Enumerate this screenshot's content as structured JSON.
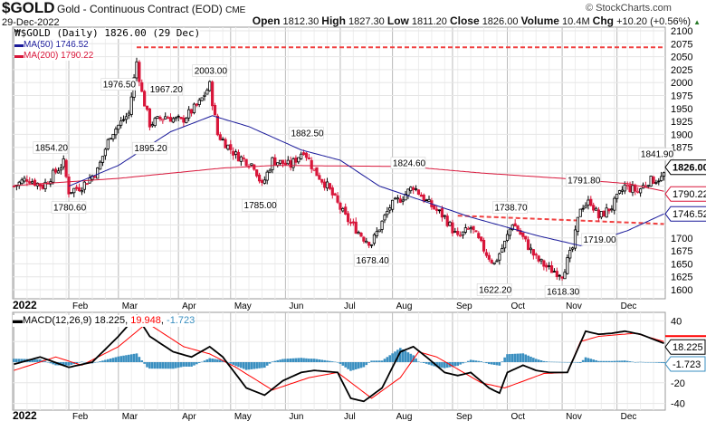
{
  "header": {
    "symbol": "$GOLD",
    "description": "Gold - Continuous Contract (EOD)",
    "exchange": "CME",
    "date": "29-Dec-2022",
    "credit": "© StockCharts.com",
    "open_label": "Open",
    "open": "1812.30",
    "high_label": "High",
    "high": "1827.30",
    "low_label": "Low",
    "low": "1811.20",
    "close_label": "Close",
    "close": "1826.00",
    "volume_label": "Volume",
    "volume": "10.4M",
    "chg_label": "Chg",
    "chg": "+10.20 (+0.56%)"
  },
  "legend": {
    "price": "$GOLD (Daily) 1826.00 (29 Dec)",
    "ma50": "MA(50) 1746.52",
    "ma200": "MA(200) 1790.22",
    "macd_name": "MACD(12,26,9)",
    "macd": "18.225",
    "signal": "19.948",
    "hist": "-1.723"
  },
  "colors": {
    "up": "#000000",
    "down": "#d8163a",
    "ma50": "#1a1a9a",
    "ma200": "#d8163a",
    "hist": "#3a8fc0",
    "signal": "#ff0000",
    "resistance": "#f04040"
  },
  "chart_data": [
    {
      "type": "candlestick",
      "title": "$GOLD (Daily)",
      "ylim": [
        1590,
        2110
      ],
      "yticks": [
        1600,
        1625,
        1650,
        1675,
        1700,
        1725,
        1750,
        1775,
        1800,
        1825,
        1850,
        1875,
        1900,
        1925,
        1950,
        1975,
        2000,
        2025,
        2050,
        2075,
        2100
      ],
      "x_labels": [
        "2022",
        "Feb",
        "Mar",
        "Apr",
        "May",
        "Jun",
        "Jul",
        "Aug",
        "Sep",
        "Oct",
        "Nov",
        "Dec"
      ],
      "month_start_day": [
        0,
        21,
        40,
        63,
        83,
        104,
        125,
        145,
        168,
        189,
        210,
        231
      ],
      "days": 250,
      "close_path": [
        [
          0,
          1800
        ],
        [
          5,
          1815
        ],
        [
          11,
          1800
        ],
        [
          19,
          1845
        ],
        [
          21,
          1790
        ],
        [
          26,
          1800
        ],
        [
          32,
          1830
        ],
        [
          37,
          1900
        ],
        [
          44,
          1940
        ],
        [
          47,
          2040
        ],
        [
          49,
          1980
        ],
        [
          52,
          1920
        ],
        [
          58,
          1935
        ],
        [
          64,
          1925
        ],
        [
          71,
          1960
        ],
        [
          75,
          1995
        ],
        [
          78,
          1900
        ],
        [
          85,
          1860
        ],
        [
          92,
          1840
        ],
        [
          95,
          1800
        ],
        [
          99,
          1850
        ],
        [
          106,
          1840
        ],
        [
          111,
          1870
        ],
        [
          115,
          1830
        ],
        [
          120,
          1800
        ],
        [
          127,
          1740
        ],
        [
          134,
          1700
        ],
        [
          137,
          1690
        ],
        [
          144,
          1760
        ],
        [
          149,
          1780
        ],
        [
          153,
          1800
        ],
        [
          158,
          1770
        ],
        [
          165,
          1740
        ],
        [
          170,
          1700
        ],
        [
          175,
          1720
        ],
        [
          181,
          1670
        ],
        [
          184,
          1650
        ],
        [
          188,
          1690
        ],
        [
          191,
          1730
        ],
        [
          195,
          1700
        ],
        [
          200,
          1660
        ],
        [
          205,
          1640
        ],
        [
          210,
          1630
        ],
        [
          214,
          1680
        ],
        [
          217,
          1760
        ],
        [
          221,
          1770
        ],
        [
          224,
          1740
        ],
        [
          229,
          1760
        ],
        [
          234,
          1800
        ],
        [
          239,
          1790
        ],
        [
          243,
          1810
        ],
        [
          248,
          1815
        ],
        [
          249,
          1826
        ]
      ],
      "ma50": [
        [
          21,
          1800
        ],
        [
          40,
          1840
        ],
        [
          60,
          1905
        ],
        [
          76,
          1936
        ],
        [
          90,
          1915
        ],
        [
          110,
          1870
        ],
        [
          125,
          1850
        ],
        [
          140,
          1800
        ],
        [
          150,
          1783
        ],
        [
          175,
          1740
        ],
        [
          200,
          1705
        ],
        [
          217,
          1685
        ],
        [
          235,
          1714
        ],
        [
          249,
          1746.52
        ]
      ],
      "ma200": [
        [
          0,
          1801
        ],
        [
          40,
          1815
        ],
        [
          80,
          1835
        ],
        [
          100,
          1840
        ],
        [
          150,
          1838
        ],
        [
          180,
          1825
        ],
        [
          210,
          1815
        ],
        [
          235,
          1805
        ],
        [
          249,
          1790.22
        ]
      ],
      "annotations": [
        [
          "1854.20",
          14,
          1854.2
        ],
        [
          "1780.60",
          21,
          1780.6
        ],
        [
          "1976.50",
          40,
          1976.5
        ],
        [
          "2003.00",
          75,
          2003
        ],
        [
          "1967.20",
          58,
          1967.2
        ],
        [
          "1895.20",
          52,
          1895.2
        ],
        [
          "1785.00",
          94,
          1785
        ],
        [
          "1882.50",
          112,
          1882.5
        ],
        [
          "1824.60",
          151,
          1824.6
        ],
        [
          "1678.40",
          137,
          1678.4
        ],
        [
          "1738.70",
          190,
          1738.7
        ],
        [
          "1622.20",
          184,
          1622.2
        ],
        [
          "1618.30",
          210,
          1618.3
        ],
        [
          "1791.80",
          218,
          1791.8
        ],
        [
          "1719.00",
          224,
          1719
        ],
        [
          "1841.90",
          246,
          1841.9
        ]
      ],
      "resistance": [
        [
          47,
          2068,
          249,
          2068
        ],
        [
          170,
          1743,
          249,
          1727
        ]
      ],
      "value_tags": [
        {
          "label": "1826.00",
          "value": 1826.0
        },
        {
          "label": "1790.22",
          "value": 1790.22
        },
        {
          "label": "1746.52",
          "value": 1746.52
        }
      ]
    },
    {
      "type": "line",
      "title": "MACD(12,26,9)",
      "ylim": [
        -42,
        45
      ],
      "yticks": [
        40,
        -20,
        -40
      ],
      "macd": [
        [
          0,
          -2
        ],
        [
          10,
          5
        ],
        [
          21,
          -5
        ],
        [
          30,
          0
        ],
        [
          40,
          25
        ],
        [
          47,
          45
        ],
        [
          52,
          25
        ],
        [
          61,
          10
        ],
        [
          68,
          5
        ],
        [
          75,
          15
        ],
        [
          80,
          5
        ],
        [
          89,
          -25
        ],
        [
          96,
          -32
        ],
        [
          103,
          -18
        ],
        [
          110,
          -10
        ],
        [
          115,
          -8
        ],
        [
          124,
          -10
        ],
        [
          129,
          -35
        ],
        [
          134,
          -38
        ],
        [
          141,
          -25
        ],
        [
          148,
          10
        ],
        [
          153,
          15
        ],
        [
          158,
          5
        ],
        [
          165,
          -10
        ],
        [
          170,
          -13
        ],
        [
          175,
          -10
        ],
        [
          182,
          -25
        ],
        [
          186,
          -30
        ],
        [
          189,
          -10
        ],
        [
          195,
          -3
        ],
        [
          200,
          -8
        ],
        [
          205,
          -10
        ],
        [
          212,
          -10
        ],
        [
          219,
          30
        ],
        [
          224,
          27
        ],
        [
          229,
          28
        ],
        [
          234,
          30
        ],
        [
          240,
          27
        ],
        [
          249,
          18.225
        ]
      ],
      "signal": [
        [
          0,
          -8
        ],
        [
          16,
          5
        ],
        [
          26,
          -3
        ],
        [
          40,
          15
        ],
        [
          51,
          38
        ],
        [
          65,
          15
        ],
        [
          75,
          8
        ],
        [
          85,
          -5
        ],
        [
          99,
          -27
        ],
        [
          113,
          -15
        ],
        [
          124,
          -10
        ],
        [
          137,
          -35
        ],
        [
          148,
          -15
        ],
        [
          155,
          10
        ],
        [
          162,
          5
        ],
        [
          179,
          -20
        ],
        [
          188,
          -25
        ],
        [
          203,
          -11
        ],
        [
          212,
          -10
        ],
        [
          217,
          20
        ],
        [
          224,
          25
        ],
        [
          238,
          28
        ],
        [
          249,
          19.948
        ]
      ],
      "value_tags": [
        {
          "label": "18.225",
          "value": 18.225
        },
        {
          "label": "-1.723",
          "value": -1.723
        }
      ]
    }
  ]
}
